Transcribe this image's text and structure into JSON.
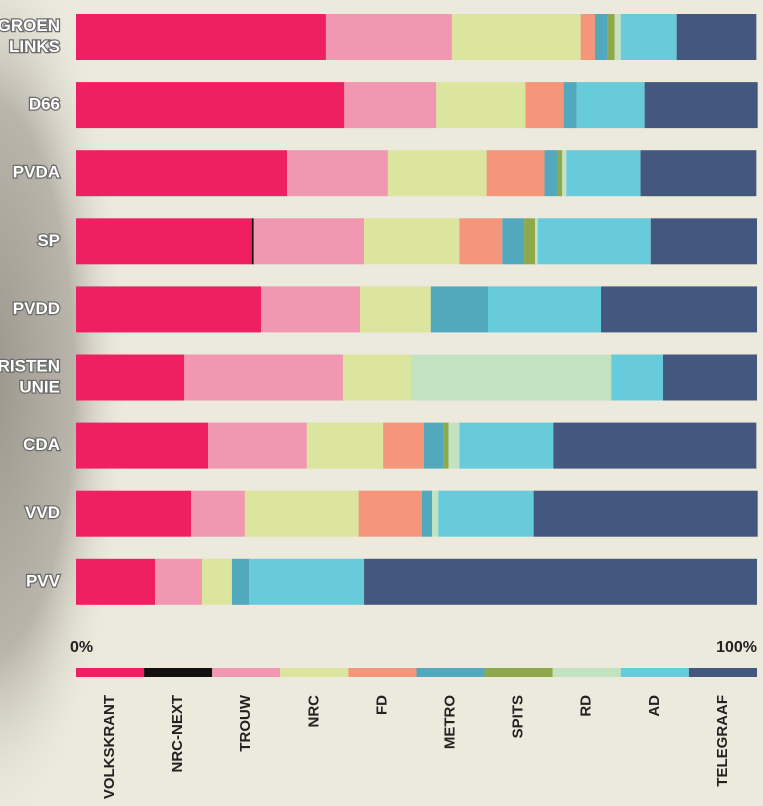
{
  "chart_data": {
    "type": "stacked-bar-horizontal",
    "categories": [
      [
        "GROEN",
        "LINKS"
      ],
      [
        "D66"
      ],
      [
        "PVDA"
      ],
      [
        "SP"
      ],
      [
        "PVDD"
      ],
      [
        "RISTEN",
        "UNIE"
      ],
      [
        "CDA"
      ],
      [
        "VVD"
      ],
      [
        "PVV"
      ]
    ],
    "xlim": [
      0,
      100
    ],
    "xticks": [
      {
        "value": 0,
        "label": "0%"
      },
      {
        "value": 100,
        "label": "100%"
      }
    ],
    "series": [
      {
        "name": "VOLKSKRANT",
        "color": "#ee1f63",
        "values": [
          36.7,
          39.4,
          31.0,
          25.8,
          27.2,
          15.9,
          19.4,
          16.9,
          11.6
        ]
      },
      {
        "name": "NRC-NEXT",
        "color": "#111111",
        "values": [
          0,
          0,
          0,
          0.3,
          0,
          0,
          0,
          0,
          0
        ]
      },
      {
        "name": "TROUW",
        "color": "#f197b1",
        "values": [
          18.5,
          13.5,
          14.8,
          16.2,
          14.5,
          23.3,
          14.5,
          7.9,
          6.9
        ]
      },
      {
        "name": "NRC",
        "color": "#dce59e",
        "values": [
          18.9,
          13.1,
          14.5,
          14.0,
          10.4,
          10.0,
          11.2,
          16.7,
          4.4
        ]
      },
      {
        "name": "FD",
        "color": "#f5957a",
        "values": [
          2.1,
          5.6,
          8.5,
          6.3,
          0,
          0,
          6.0,
          9.3,
          0
        ]
      },
      {
        "name": "METRO",
        "color": "#52a8bd",
        "values": [
          1.9,
          1.9,
          1.9,
          3.2,
          8.4,
          0,
          2.9,
          1.5,
          2.5
        ]
      },
      {
        "name": "SPITS",
        "color": "#8fa84c",
        "values": [
          1.0,
          0,
          0.7,
          1.6,
          0,
          0,
          0.7,
          0,
          0
        ]
      },
      {
        "name": "RD",
        "color": "#c3e2c2",
        "values": [
          0.9,
          0,
          0.6,
          0.4,
          0,
          29.4,
          1.6,
          0.9,
          0
        ]
      },
      {
        "name": "AD",
        "color": "#68cbdc",
        "values": [
          8.2,
          10.0,
          10.9,
          16.6,
          16.6,
          7.6,
          13.8,
          14.0,
          16.9
        ]
      },
      {
        "name": "TELEGRAAF",
        "color": "#44577e",
        "values": [
          11.7,
          16.6,
          17.0,
          15.6,
          22.9,
          13.8,
          29.8,
          32.9,
          57.7
        ]
      }
    ]
  }
}
